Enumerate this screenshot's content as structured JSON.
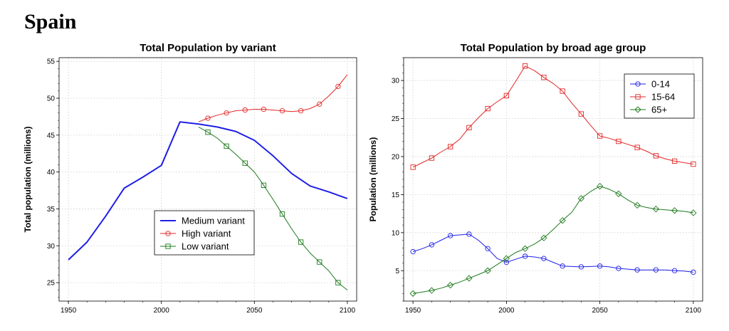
{
  "page_title": "Spain",
  "colors": {
    "blue": "#1f1fe6",
    "red": "#e22626",
    "green": "#1e7a1e"
  },
  "chart_data": [
    {
      "type": "line",
      "title": "Total Population by variant",
      "xlabel": "",
      "ylabel": "Total population (millions)",
      "xlim": [
        1945,
        2105
      ],
      "ylim": [
        22.5,
        55.5
      ],
      "xticks": [
        1950,
        2000,
        2050,
        2100
      ],
      "yticks": [
        25,
        30,
        35,
        40,
        45,
        50,
        55
      ],
      "grid": true,
      "legend_position": "bottom-center",
      "series": [
        {
          "name": "Medium variant",
          "color": "#1f1fe6",
          "marker": "none",
          "width": 2,
          "x": [
            1950,
            1960,
            1970,
            1980,
            1990,
            2000,
            2010,
            2020,
            2030,
            2040,
            2050,
            2060,
            2070,
            2080,
            2090,
            2100
          ],
          "y": [
            28.1,
            30.5,
            34.0,
            37.8,
            39.3,
            40.9,
            46.8,
            46.5,
            46.1,
            45.5,
            44.3,
            42.2,
            39.8,
            38.1,
            37.3,
            36.4
          ]
        },
        {
          "name": "High variant",
          "color": "#e22626",
          "marker": "circle",
          "width": 1,
          "x": [
            2020,
            2025,
            2030,
            2035,
            2040,
            2045,
            2050,
            2055,
            2060,
            2065,
            2070,
            2075,
            2080,
            2085,
            2090,
            2095,
            2100
          ],
          "y": [
            46.8,
            47.3,
            47.7,
            48.0,
            48.3,
            48.4,
            48.5,
            48.5,
            48.4,
            48.3,
            48.2,
            48.3,
            48.6,
            49.2,
            50.3,
            51.6,
            53.2
          ]
        },
        {
          "name": "Low variant",
          "color": "#1e7a1e",
          "marker": "square",
          "width": 1,
          "x": [
            2020,
            2025,
            2030,
            2035,
            2040,
            2045,
            2050,
            2055,
            2060,
            2065,
            2070,
            2075,
            2080,
            2085,
            2090,
            2095,
            2100
          ],
          "y": [
            46.1,
            45.4,
            44.6,
            43.5,
            42.4,
            41.2,
            40.0,
            38.2,
            36.3,
            34.3,
            32.3,
            30.5,
            29.0,
            27.8,
            26.6,
            25.0,
            24.0
          ]
        }
      ]
    },
    {
      "type": "line",
      "title": "Total Population by broad age group",
      "xlabel": "",
      "ylabel": "Population (millions)",
      "xlim": [
        1945,
        2105
      ],
      "ylim": [
        1,
        33
      ],
      "xticks": [
        1950,
        2000,
        2050,
        2100
      ],
      "yticks": [
        5,
        10,
        15,
        20,
        25,
        30
      ],
      "grid": true,
      "legend_position": "top-right",
      "series": [
        {
          "name": "0-14",
          "color": "#1f1fe6",
          "marker": "circle",
          "width": 1,
          "x": [
            1950,
            1955,
            1960,
            1965,
            1970,
            1975,
            1980,
            1985,
            1990,
            1995,
            2000,
            2005,
            2010,
            2015,
            2020,
            2025,
            2030,
            2035,
            2040,
            2045,
            2050,
            2055,
            2060,
            2065,
            2070,
            2075,
            2080,
            2085,
            2090,
            2095,
            2100
          ],
          "y": [
            7.5,
            7.9,
            8.4,
            9.0,
            9.6,
            9.7,
            9.8,
            9.0,
            7.9,
            6.6,
            6.1,
            6.5,
            6.9,
            6.8,
            6.6,
            6.1,
            5.6,
            5.55,
            5.5,
            5.55,
            5.6,
            5.5,
            5.3,
            5.2,
            5.1,
            5.1,
            5.1,
            5.1,
            5.0,
            4.95,
            4.8
          ]
        },
        {
          "name": "15-64",
          "color": "#e22626",
          "marker": "square",
          "width": 1,
          "x": [
            1950,
            1955,
            1960,
            1965,
            1970,
            1975,
            1980,
            1985,
            1990,
            1995,
            2000,
            2005,
            2010,
            2015,
            2020,
            2025,
            2030,
            2035,
            2040,
            2045,
            2050,
            2055,
            2060,
            2065,
            2070,
            2075,
            2080,
            2085,
            2090,
            2095,
            2100
          ],
          "y": [
            18.6,
            19.2,
            19.8,
            20.6,
            21.3,
            22.3,
            23.8,
            25.1,
            26.3,
            27.2,
            28.0,
            29.9,
            31.9,
            31.3,
            30.4,
            29.6,
            28.6,
            27.0,
            25.6,
            24.1,
            22.7,
            22.4,
            22.0,
            21.6,
            21.2,
            20.7,
            20.1,
            19.7,
            19.4,
            19.2,
            19.0
          ]
        },
        {
          "name": "65+",
          "color": "#1e7a1e",
          "marker": "diamond",
          "width": 1,
          "x": [
            1950,
            1955,
            1960,
            1965,
            1970,
            1975,
            1980,
            1985,
            1990,
            1995,
            2000,
            2005,
            2010,
            2015,
            2020,
            2025,
            2030,
            2035,
            2040,
            2045,
            2050,
            2055,
            2060,
            2065,
            2070,
            2075,
            2080,
            2085,
            2090,
            2095,
            2100
          ],
          "y": [
            2.0,
            2.2,
            2.4,
            2.7,
            3.1,
            3.5,
            4.0,
            4.5,
            5.0,
            5.8,
            6.6,
            7.4,
            7.9,
            8.5,
            9.3,
            10.4,
            11.6,
            12.7,
            14.5,
            15.4,
            16.1,
            15.7,
            15.1,
            14.3,
            13.6,
            13.3,
            13.1,
            13.0,
            12.9,
            12.8,
            12.6
          ]
        }
      ]
    }
  ]
}
